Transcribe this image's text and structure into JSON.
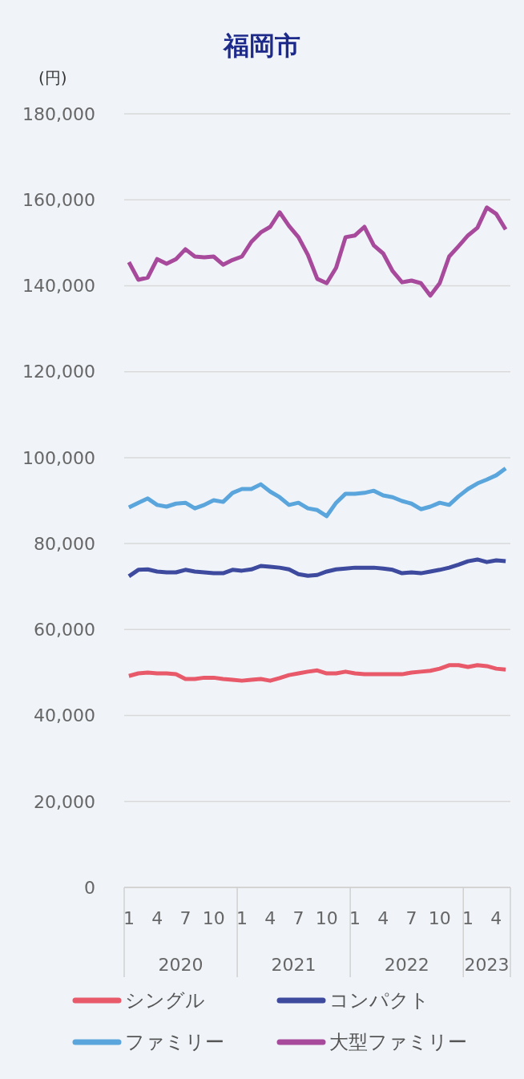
{
  "chart_data": {
    "type": "line",
    "title": "福岡市",
    "ylabel": "(円)",
    "x": [
      "2020-01",
      "2020-02",
      "2020-03",
      "2020-04",
      "2020-05",
      "2020-06",
      "2020-07",
      "2020-08",
      "2020-09",
      "2020-10",
      "2020-11",
      "2020-12",
      "2021-01",
      "2021-02",
      "2021-03",
      "2021-04",
      "2021-05",
      "2021-06",
      "2021-07",
      "2021-08",
      "2021-09",
      "2021-10",
      "2021-11",
      "2021-12",
      "2022-01",
      "2022-02",
      "2022-03",
      "2022-04",
      "2022-05",
      "2022-06",
      "2022-07",
      "2022-08",
      "2022-09",
      "2022-10",
      "2022-11",
      "2022-12",
      "2023-01",
      "2023-02",
      "2023-03",
      "2023-04",
      "2023-05"
    ],
    "xticks": [
      {
        "value": "2020-01",
        "label": "1"
      },
      {
        "value": "2020-04",
        "label": "4"
      },
      {
        "value": "2020-07",
        "label": "7"
      },
      {
        "value": "2020-10",
        "label": "10"
      },
      {
        "value": "2021-01",
        "label": "1"
      },
      {
        "value": "2021-04",
        "label": "4"
      },
      {
        "value": "2021-07",
        "label": "7"
      },
      {
        "value": "2021-10",
        "label": "10"
      },
      {
        "value": "2022-01",
        "label": "1"
      },
      {
        "value": "2022-04",
        "label": "4"
      },
      {
        "value": "2022-07",
        "label": "7"
      },
      {
        "value": "2022-10",
        "label": "10"
      },
      {
        "value": "2023-01",
        "label": "1"
      },
      {
        "value": "2023-04",
        "label": "4"
      }
    ],
    "xlim": [
      "2019-12-16",
      "2023-05-16"
    ],
    "annotations": [
      "2020",
      "2021",
      "2022",
      "2023"
    ],
    "ylim": [
      0,
      180000
    ],
    "yticks": [
      0,
      {
        "value": 20000,
        "label": "20,000"
      },
      {
        "value": 40000,
        "label": "40,000"
      },
      {
        "value": 60000,
        "label": "60,000"
      },
      {
        "value": 80000,
        "label": "80,000"
      },
      {
        "value": 100000,
        "label": "100,000"
      },
      {
        "value": 120000,
        "label": "120,000"
      },
      {
        "value": 140000,
        "label": "140,000"
      },
      {
        "value": 160000,
        "label": "160,000"
      },
      {
        "value": 180000,
        "label": "180,000"
      }
    ],
    "grid": "y",
    "legend": "bottom",
    "marker": "none",
    "line_style": "solid",
    "series": [
      {
        "name": "シングル",
        "color": "#e8596a",
        "values": [
          49200,
          49800,
          50000,
          49800,
          49800,
          49600,
          48500,
          48500,
          48800,
          48800,
          48500,
          48300,
          48100,
          48300,
          48500,
          48100,
          48700,
          49400,
          49800,
          50200,
          50500,
          49800,
          49800,
          50200,
          49800,
          49600,
          49600,
          49600,
          49600,
          49600,
          50000,
          50200,
          50400,
          50900,
          51700,
          51700,
          51300,
          51700,
          51500,
          50900,
          50700
        ]
      },
      {
        "name": "コンパクト",
        "color": "#3d4a9e",
        "values": [
          72400,
          73900,
          74000,
          73500,
          73300,
          73300,
          73900,
          73500,
          73300,
          73100,
          73100,
          73900,
          73700,
          74000,
          74800,
          74600,
          74400,
          74000,
          72900,
          72500,
          72700,
          73500,
          74000,
          74200,
          74400,
          74400,
          74400,
          74200,
          73900,
          73100,
          73300,
          73100,
          73500,
          73900,
          74400,
          75100,
          75900,
          76300,
          75700,
          76100,
          75900
        ]
      },
      {
        "name": "ファミリー",
        "color": "#5aa5dc",
        "values": [
          88400,
          89500,
          90500,
          89000,
          88600,
          89300,
          89500,
          88200,
          89000,
          90100,
          89700,
          91800,
          92700,
          92700,
          93800,
          92100,
          90800,
          89000,
          89500,
          88200,
          87800,
          86400,
          89500,
          91600,
          91600,
          91800,
          92300,
          91200,
          90800,
          89900,
          89300,
          88000,
          88600,
          89500,
          89000,
          91000,
          92700,
          94000,
          94900,
          95900,
          97500
        ]
      },
      {
        "name": "大型ファミリー",
        "color": "#a84a9c",
        "values": [
          145500,
          141400,
          141900,
          146200,
          145100,
          146200,
          148500,
          146800,
          146600,
          146800,
          144900,
          146000,
          146800,
          150200,
          152400,
          153700,
          157100,
          153900,
          151300,
          147200,
          141600,
          140600,
          144200,
          151300,
          151700,
          153700,
          149400,
          147500,
          143400,
          140800,
          141200,
          140600,
          137700,
          140600,
          146800,
          149200,
          151700,
          153500,
          158200,
          156700,
          153100
        ]
      }
    ]
  }
}
